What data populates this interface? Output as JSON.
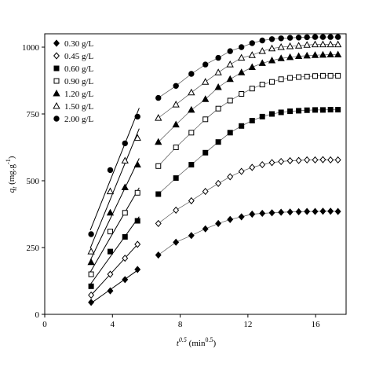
{
  "chart_data": {
    "type": "scatter",
    "xlabel": [
      "t",
      "0.5",
      " (min",
      "0.5",
      ")"
    ],
    "ylabel": [
      "q",
      "t",
      " (mg.g",
      "-1",
      ")"
    ],
    "x": [
      2.74,
      3.87,
      4.74,
      5.48,
      6.71,
      7.75,
      8.66,
      9.49,
      10.25,
      10.95,
      11.62,
      12.25,
      12.85,
      13.42,
      13.96,
      14.49,
      15.0,
      15.49,
      15.97,
      16.43,
      16.88,
      17.32
    ],
    "series": [
      {
        "name": "0.30 g/L",
        "color": "#000000",
        "marker": "diamond",
        "filled": true,
        "values": [
          45,
          88,
          130,
          168,
          222,
          270,
          295,
          320,
          340,
          355,
          365,
          375,
          378,
          380,
          382,
          383,
          384,
          385,
          385,
          386,
          386,
          385
        ]
      },
      {
        "name": "0.45 g/L",
        "color": "#000000",
        "marker": "diamond",
        "filled": false,
        "values": [
          72,
          150,
          210,
          262,
          340,
          390,
          425,
          460,
          490,
          515,
          535,
          550,
          560,
          568,
          572,
          575,
          576,
          578,
          578,
          579,
          578,
          578
        ]
      },
      {
        "name": "0.60 g/L",
        "color": "#000000",
        "marker": "square",
        "filled": true,
        "values": [
          105,
          235,
          290,
          350,
          450,
          510,
          560,
          605,
          645,
          680,
          705,
          725,
          740,
          750,
          756,
          760,
          762,
          764,
          765,
          765,
          766,
          766
        ]
      },
      {
        "name": "0.90 g/L",
        "color": "#000000",
        "marker": "square",
        "filled": false,
        "values": [
          150,
          310,
          380,
          455,
          555,
          625,
          680,
          730,
          770,
          800,
          825,
          845,
          860,
          870,
          880,
          885,
          888,
          890,
          892,
          893,
          893,
          893
        ]
      },
      {
        "name": "1.20 g/L",
        "color": "#000000",
        "marker": "triangle",
        "filled": true,
        "values": [
          195,
          380,
          475,
          560,
          645,
          710,
          765,
          805,
          850,
          880,
          905,
          925,
          940,
          950,
          958,
          962,
          966,
          968,
          970,
          971,
          972,
          972
        ]
      },
      {
        "name": "1.50 g/L",
        "color": "#000000",
        "marker": "triangle",
        "filled": false,
        "values": [
          235,
          460,
          575,
          660,
          735,
          785,
          830,
          870,
          905,
          935,
          960,
          970,
          985,
          995,
          1000,
          1003,
          1005,
          1008,
          1010,
          1010,
          1010,
          1010
        ]
      },
      {
        "name": "2.00 g/L",
        "color": "#000000",
        "marker": "circle",
        "filled": true,
        "values": [
          300,
          540,
          640,
          740,
          810,
          855,
          900,
          935,
          960,
          985,
          1000,
          1015,
          1025,
          1030,
          1033,
          1035,
          1036,
          1037,
          1038,
          1038,
          1038,
          1038
        ]
      }
    ],
    "xlim": [
      0,
      17.8
    ],
    "ylim": [
      0,
      1050
    ],
    "xticks": [
      0,
      4,
      8,
      12,
      16
    ],
    "yticks": [
      0,
      250,
      500,
      750,
      1000
    ],
    "legend": "upper-left"
  }
}
